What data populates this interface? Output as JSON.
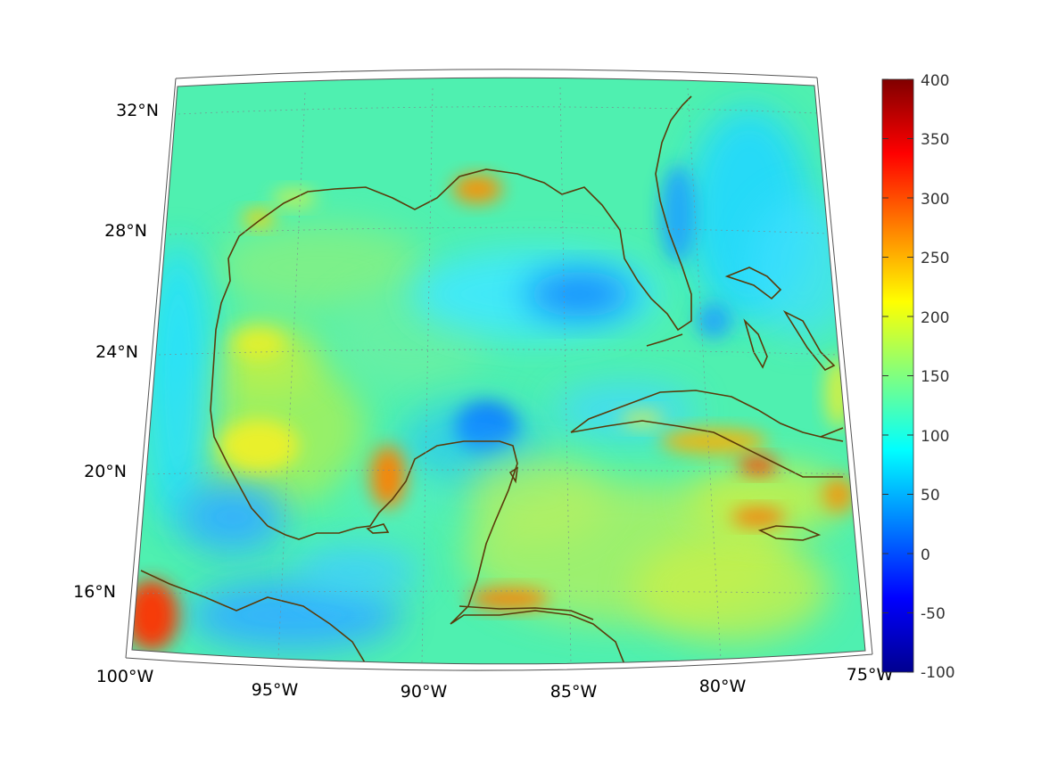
{
  "map": {
    "lat_labels": [
      "32°N",
      "28°N",
      "24°N",
      "20°N",
      "16°N"
    ],
    "lon_labels": [
      "100°W",
      "95°W",
      "90°W",
      "85°W",
      "80°W",
      "75°W"
    ],
    "extent": {
      "lon_min": -100,
      "lon_max": -75,
      "lat_min": 14,
      "lat_max": 33
    },
    "grid": true,
    "land_outline_color": "#5a3a0a",
    "background_field": "#4ff0b0"
  },
  "colorbar": {
    "ticks": [
      "400",
      "350",
      "300",
      "250",
      "200",
      "150",
      "100",
      "50",
      "0",
      "-50",
      "-100"
    ],
    "range": [
      -100,
      400
    ],
    "colormap": "jet",
    "colors": [
      "#00008f",
      "#0000ff",
      "#0080ff",
      "#00ffff",
      "#80ff80",
      "#ffff00",
      "#ff8000",
      "#ff0000",
      "#800000"
    ]
  }
}
